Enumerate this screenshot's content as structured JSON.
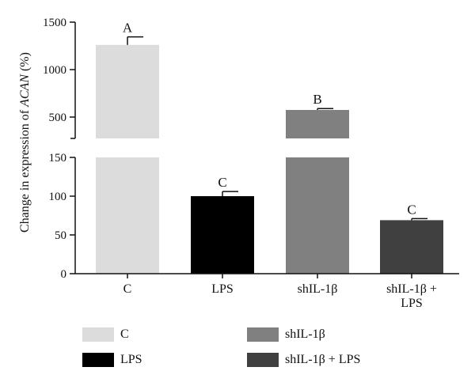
{
  "chart_data": {
    "type": "bar",
    "categories": [
      "C",
      "LPS",
      "shIL-1β",
      "shIL-1β + LPS"
    ],
    "category_lines": [
      [
        "C"
      ],
      [
        "LPS"
      ],
      [
        "shIL-1β"
      ],
      [
        "shIL-1β +",
        "LPS"
      ]
    ],
    "values": [
      1260,
      100,
      575,
      69
    ],
    "errors": [
      85,
      6,
      15,
      2
    ],
    "significance": [
      "A",
      "C",
      "B",
      "C"
    ],
    "colors": [
      "#dcdcdc",
      "#000000",
      "#808080",
      "#404040"
    ],
    "ylabel": "Change in expression of ACAN (%)",
    "ylabel_parts": [
      {
        "text": "Change in expression of ",
        "italic": false
      },
      {
        "text": "ACAN",
        "italic": true
      },
      {
        "text": " (%)",
        "italic": false
      }
    ],
    "broken_axis": true,
    "lower_range": [
      0,
      150
    ],
    "upper_range": [
      275,
      1500
    ],
    "lower_ticks": [
      0,
      50,
      100,
      150
    ],
    "upper_ticks": [
      500,
      1000,
      1500
    ],
    "grid": false,
    "legend_position": "bottom"
  },
  "legend": [
    {
      "label": "C",
      "color": "#dcdcdc"
    },
    {
      "label": "LPS",
      "color": "#000000"
    },
    {
      "label": "shIL-1β",
      "color": "#808080"
    },
    {
      "label": "shIL-1β + LPS",
      "color": "#404040"
    }
  ]
}
